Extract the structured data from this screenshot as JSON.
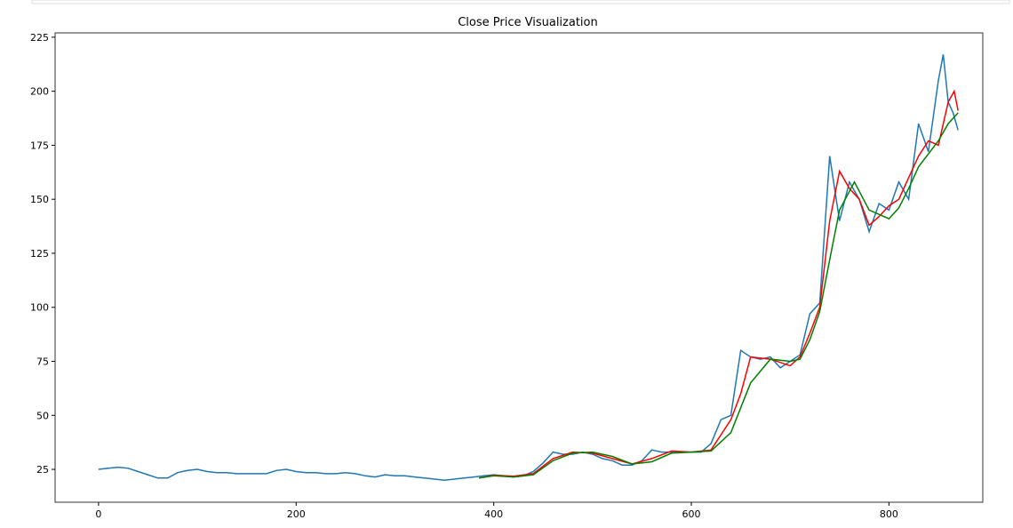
{
  "chart_data": {
    "type": "line",
    "title": "Close Price Visualization",
    "xlim": [
      -44,
      895
    ],
    "ylim": [
      9.8,
      227
    ],
    "xticks": [
      0,
      200,
      400,
      600,
      800
    ],
    "yticks": [
      25,
      50,
      75,
      100,
      125,
      150,
      175,
      200,
      225
    ],
    "series": [
      {
        "color": "#1f77b4",
        "x": [
          0,
          10,
          20,
          30,
          40,
          50,
          60,
          70,
          80,
          90,
          100,
          110,
          120,
          130,
          140,
          150,
          160,
          170,
          180,
          190,
          200,
          210,
          220,
          230,
          240,
          250,
          260,
          270,
          280,
          290,
          300,
          310,
          320,
          330,
          340,
          350,
          360,
          370,
          380,
          390,
          400,
          410,
          420,
          430,
          440,
          450,
          460,
          470,
          480,
          490,
          500,
          510,
          520,
          530,
          540,
          550,
          560,
          570,
          580,
          590,
          600,
          610,
          620,
          630,
          640,
          650,
          660,
          670,
          680,
          690,
          700,
          710,
          720,
          730,
          740,
          750,
          760,
          770,
          780,
          790,
          800,
          810,
          820,
          830,
          840,
          850,
          855,
          860,
          865,
          870
        ],
        "values": [
          25,
          25.5,
          26,
          25.5,
          24,
          22.5,
          21,
          21,
          23.5,
          24.5,
          25,
          24,
          23.5,
          23.5,
          23,
          23,
          23,
          23,
          24.5,
          25,
          24,
          23.5,
          23.5,
          23,
          23,
          23.5,
          23,
          22,
          21.5,
          22.5,
          22,
          22,
          21.5,
          21,
          20.5,
          20,
          20.5,
          21,
          21.5,
          22,
          22.5,
          22,
          21.5,
          22,
          24,
          28,
          33,
          32,
          32,
          33,
          32,
          30,
          29,
          27,
          27,
          29,
          34,
          33,
          33,
          33,
          33,
          33,
          37,
          48,
          50,
          80,
          77,
          76,
          77,
          72,
          75,
          78,
          97,
          102,
          170,
          140,
          158,
          150,
          135,
          148,
          145,
          158,
          150,
          185,
          172,
          205,
          217,
          195,
          190,
          182
        ]
      },
      {
        "color": "#ff0000",
        "x": [
          385,
          400,
          420,
          440,
          460,
          480,
          500,
          520,
          540,
          560,
          580,
          600,
          620,
          640,
          650,
          660,
          680,
          700,
          710,
          720,
          730,
          740,
          750,
          760,
          770,
          780,
          790,
          800,
          810,
          820,
          830,
          840,
          850,
          860,
          866,
          870
        ],
        "values": [
          21,
          22.3,
          21.8,
          23,
          30,
          33,
          32.5,
          30,
          27.5,
          30,
          33.5,
          33,
          34,
          48,
          60,
          77,
          76,
          73,
          77,
          88,
          100,
          140,
          163,
          155,
          150,
          138,
          142,
          147,
          150,
          160,
          170,
          177,
          175,
          195,
          200,
          191
        ]
      },
      {
        "color": "#008000",
        "x": [
          385,
          400,
          420,
          440,
          460,
          480,
          500,
          520,
          540,
          560,
          580,
          600,
          620,
          640,
          660,
          680,
          700,
          710,
          720,
          730,
          740,
          750,
          765,
          780,
          800,
          810,
          820,
          830,
          850,
          860,
          870
        ],
        "values": [
          21,
          22,
          21.5,
          22.5,
          29,
          32.5,
          33,
          31,
          27.5,
          28.5,
          32.5,
          33,
          33.5,
          42,
          65,
          76,
          75,
          76,
          85,
          98,
          122,
          145,
          158,
          145,
          141,
          146,
          155,
          165,
          177,
          185,
          190
        ]
      }
    ]
  }
}
